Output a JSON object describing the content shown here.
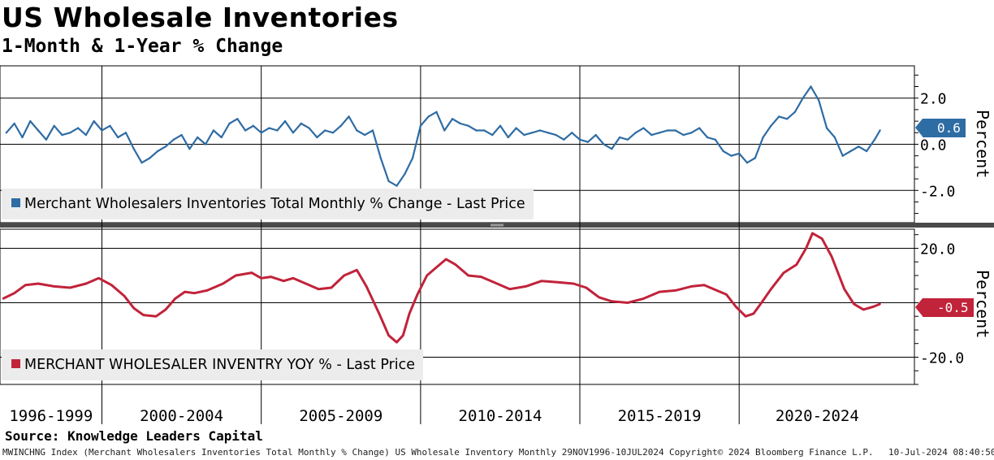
{
  "title": "US Wholesale Inventories",
  "subtitle": "1-Month & 1-Year % Change",
  "source": "Source: Knowledge Leaders Capital",
  "footer": {
    "left": "MWINCHNG Index (Merchant Wholesalers Inventories Total Monthly % Change) US Wholesale Inventory  Monthly 29NOV1996-10JUL2024",
    "middle": "Copyright© 2024 Bloomberg Finance L.P.",
    "right": "10-Jul-2024 08:40:50"
  },
  "colors": {
    "blue": "#2e6ca4",
    "red": "#c1233a"
  },
  "chart_data": [
    {
      "type": "line",
      "name": "monthly",
      "series_name": "Merchant Wholesalers Inventories Total Monthly % Change - Last Price",
      "ylabel": "Percent",
      "ylim": [
        -3.4,
        3.4
      ],
      "yticks": [
        2.0,
        0.0,
        -2.0
      ],
      "ytick_labels": [
        "2.0",
        "0.0",
        "-2.0"
      ],
      "last_value": 0.6,
      "last_label": "0.6",
      "x": [
        1997.0,
        1997.25,
        1997.5,
        1997.75,
        1998.0,
        1998.25,
        1998.5,
        1998.75,
        1999.0,
        1999.25,
        1999.5,
        1999.75,
        2000.0,
        2000.25,
        2000.5,
        2000.75,
        2001.0,
        2001.25,
        2001.5,
        2001.75,
        2002.0,
        2002.25,
        2002.5,
        2002.75,
        2003.0,
        2003.25,
        2003.5,
        2003.75,
        2004.0,
        2004.25,
        2004.5,
        2004.75,
        2005.0,
        2005.25,
        2005.5,
        2005.75,
        2006.0,
        2006.25,
        2006.5,
        2006.75,
        2007.0,
        2007.25,
        2007.5,
        2007.75,
        2008.0,
        2008.25,
        2008.5,
        2008.75,
        2009.0,
        2009.25,
        2009.5,
        2009.75,
        2010.0,
        2010.25,
        2010.5,
        2010.75,
        2011.0,
        2011.25,
        2011.5,
        2011.75,
        2012.0,
        2012.25,
        2012.5,
        2012.75,
        2013.0,
        2013.25,
        2013.5,
        2013.75,
        2014.0,
        2014.25,
        2014.5,
        2014.75,
        2015.0,
        2015.25,
        2015.5,
        2015.75,
        2016.0,
        2016.25,
        2016.5,
        2016.75,
        2017.0,
        2017.25,
        2017.5,
        2017.75,
        2018.0,
        2018.25,
        2018.5,
        2018.75,
        2019.0,
        2019.25,
        2019.5,
        2019.75,
        2020.0,
        2020.25,
        2020.5,
        2020.75,
        2021.0,
        2021.25,
        2021.5,
        2021.75,
        2022.0,
        2022.25,
        2022.5,
        2022.75,
        2023.0,
        2023.25,
        2023.5,
        2023.75,
        2024.0,
        2024.25,
        2024.42
      ],
      "values": [
        0.5,
        0.9,
        0.3,
        1.0,
        0.6,
        0.2,
        0.8,
        0.4,
        0.5,
        0.7,
        0.4,
        1.0,
        0.6,
        0.8,
        0.3,
        0.5,
        -0.2,
        -0.8,
        -0.6,
        -0.3,
        -0.1,
        0.2,
        0.4,
        -0.2,
        0.3,
        0.0,
        0.6,
        0.3,
        0.9,
        1.1,
        0.6,
        0.8,
        0.5,
        0.7,
        0.6,
        1.0,
        0.5,
        0.9,
        0.7,
        0.3,
        0.6,
        0.5,
        0.8,
        1.2,
        0.6,
        0.4,
        0.6,
        -0.6,
        -1.6,
        -1.8,
        -1.3,
        -0.6,
        0.8,
        1.2,
        1.4,
        0.6,
        1.1,
        0.9,
        0.8,
        0.6,
        0.6,
        0.4,
        0.8,
        0.3,
        0.7,
        0.4,
        0.5,
        0.6,
        0.5,
        0.4,
        0.2,
        0.5,
        0.2,
        0.1,
        0.4,
        0.0,
        -0.2,
        0.3,
        0.2,
        0.5,
        0.7,
        0.4,
        0.5,
        0.6,
        0.6,
        0.4,
        0.5,
        0.7,
        0.3,
        0.2,
        -0.3,
        -0.5,
        -0.4,
        -0.8,
        -0.6,
        0.3,
        0.8,
        1.2,
        1.1,
        1.4,
        2.0,
        2.5,
        1.9,
        0.7,
        0.3,
        -0.5,
        -0.3,
        -0.1,
        -0.3,
        0.2,
        0.6
      ]
    },
    {
      "type": "line",
      "name": "yoy",
      "series_name": "MERCHANT WHOLESALER INVENTRY YOY % - Last Price",
      "ylabel": "Percent",
      "ylim": [
        -30,
        27
      ],
      "yticks": [
        20.0,
        0.0,
        -20.0
      ],
      "ytick_labels": [
        "20.0",
        "",
        "-20.0"
      ],
      "last_value": -0.5,
      "last_label": "-0.5",
      "x": [
        1996.9,
        1997.25,
        1997.6,
        1998.0,
        1998.5,
        1999.0,
        1999.5,
        1999.9,
        2000.3,
        2000.7,
        2001.0,
        2001.3,
        2001.7,
        2002.0,
        2002.3,
        2002.6,
        2002.9,
        2003.3,
        2003.8,
        2004.2,
        2004.7,
        2005.0,
        2005.3,
        2005.7,
        2006.0,
        2006.4,
        2006.8,
        2007.2,
        2007.6,
        2008.0,
        2008.3,
        2008.7,
        2009.0,
        2009.25,
        2009.45,
        2009.65,
        2009.9,
        2010.2,
        2010.5,
        2010.8,
        2011.1,
        2011.5,
        2011.9,
        2012.3,
        2012.8,
        2013.3,
        2013.8,
        2014.3,
        2014.8,
        2015.2,
        2015.6,
        2016.0,
        2016.5,
        2017.0,
        2017.5,
        2018.0,
        2018.5,
        2018.9,
        2019.2,
        2019.6,
        2019.9,
        2020.2,
        2020.45,
        2020.7,
        2021.0,
        2021.4,
        2021.8,
        2022.1,
        2022.3,
        2022.6,
        2022.9,
        2023.3,
        2023.6,
        2023.9,
        2024.2,
        2024.42
      ],
      "values": [
        1.5,
        3.5,
        6.5,
        7.0,
        6.0,
        5.5,
        7.0,
        9.0,
        6.5,
        2.5,
        -2.0,
        -4.5,
        -5.0,
        -2.5,
        1.5,
        4.0,
        3.5,
        4.5,
        7.0,
        10.0,
        11.0,
        9.0,
        9.5,
        8.0,
        9.0,
        7.0,
        5.0,
        5.5,
        10.0,
        12.0,
        6.0,
        -4.0,
        -12.0,
        -14.5,
        -12.0,
        -4.0,
        3.0,
        10.0,
        13.0,
        16.0,
        14.0,
        10.0,
        9.5,
        7.5,
        5.0,
        6.0,
        8.0,
        7.5,
        7.0,
        5.5,
        2.0,
        0.5,
        0.0,
        1.5,
        4.0,
        4.5,
        6.0,
        6.5,
        5.0,
        3.0,
        -1.5,
        -5.0,
        -4.0,
        0.0,
        5.0,
        11.0,
        14.0,
        20.0,
        25.5,
        23.5,
        17.0,
        5.0,
        -0.5,
        -2.5,
        -1.5,
        -0.5
      ]
    }
  ],
  "x_axis": {
    "range_labels": [
      "1996-1999",
      "2000-2004",
      "2005-2009",
      "2010-2014",
      "2015-2019",
      "2020-2024"
    ]
  }
}
